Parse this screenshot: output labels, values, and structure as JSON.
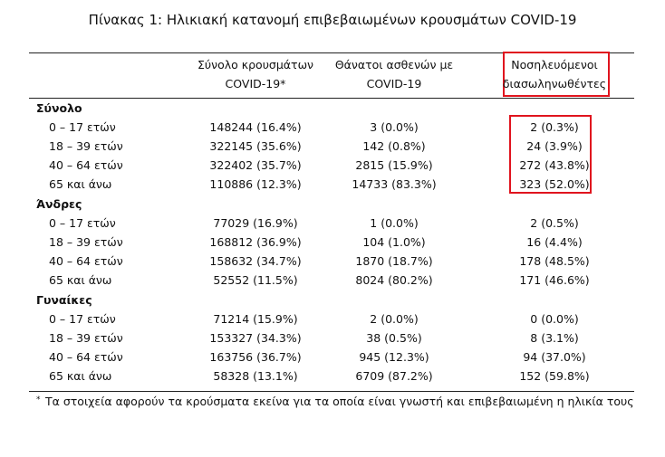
{
  "header": {
    "title": "Πίνακας 1: Ηλικιακή κατανομή επιβεβαιωμένων κρουσμάτων COVID-19"
  },
  "table": {
    "columns": [
      [
        "Σύνολο κρουσμάτων",
        "COVID-19*"
      ],
      [
        "Θάνατοι ασθενών με",
        "COVID-19"
      ],
      [
        "Νοσηλευόμενοι",
        "διασωληνωθέντες"
      ]
    ],
    "groups": [
      {
        "label": "Σύνολο",
        "rows": [
          {
            "label": "0 – 17 ετών",
            "values": [
              "148244 (16.4%)",
              "3 (0.0%)",
              "2 (0.3%)"
            ]
          },
          {
            "label": "18 – 39 ετών",
            "values": [
              "322145 (35.6%)",
              "142 (0.8%)",
              "24 (3.9%)"
            ]
          },
          {
            "label": "40 – 64 ετών",
            "values": [
              "322402 (35.7%)",
              "2815 (15.9%)",
              "272 (43.8%)"
            ]
          },
          {
            "label": "65 και άνω",
            "values": [
              "110886 (12.3%)",
              "14733 (83.3%)",
              "323 (52.0%)"
            ]
          }
        ]
      },
      {
        "label": "Άνδρες",
        "rows": [
          {
            "label": "0 – 17 ετών",
            "values": [
              "77029 (16.9%)",
              "1 (0.0%)",
              "2 (0.5%)"
            ]
          },
          {
            "label": "18 – 39 ετών",
            "values": [
              "168812 (36.9%)",
              "104 (1.0%)",
              "16 (4.4%)"
            ]
          },
          {
            "label": "40 – 64 ετών",
            "values": [
              "158632 (34.7%)",
              "1870 (18.7%)",
              "178 (48.5%)"
            ]
          },
          {
            "label": "65 και άνω",
            "values": [
              "52552 (11.5%)",
              "8024 (80.2%)",
              "171 (46.6%)"
            ]
          }
        ]
      },
      {
        "label": "Γυναίκες",
        "rows": [
          {
            "label": "0 – 17 ετών",
            "values": [
              "71214 (15.9%)",
              "2 (0.0%)",
              "0 (0.0%)"
            ]
          },
          {
            "label": "18 – 39 ετών",
            "values": [
              "153327 (34.3%)",
              "38 (0.5%)",
              "8 (3.1%)"
            ]
          },
          {
            "label": "40 – 64 ετών",
            "values": [
              "163756 (36.7%)",
              "945 (12.3%)",
              "94 (37.0%)"
            ]
          },
          {
            "label": "65 και άνω",
            "values": [
              "58328 (13.1%)",
              "6709 (87.2%)",
              "152 (59.8%)"
            ]
          }
        ]
      }
    ]
  },
  "footnote": {
    "marker": "*",
    "text": "Τα στοιχεία αφορούν τα κρούσματα εκείνα για τα οποία είναι γνωστή και επιβεβαιωμένη η ηλικία τους"
  }
}
